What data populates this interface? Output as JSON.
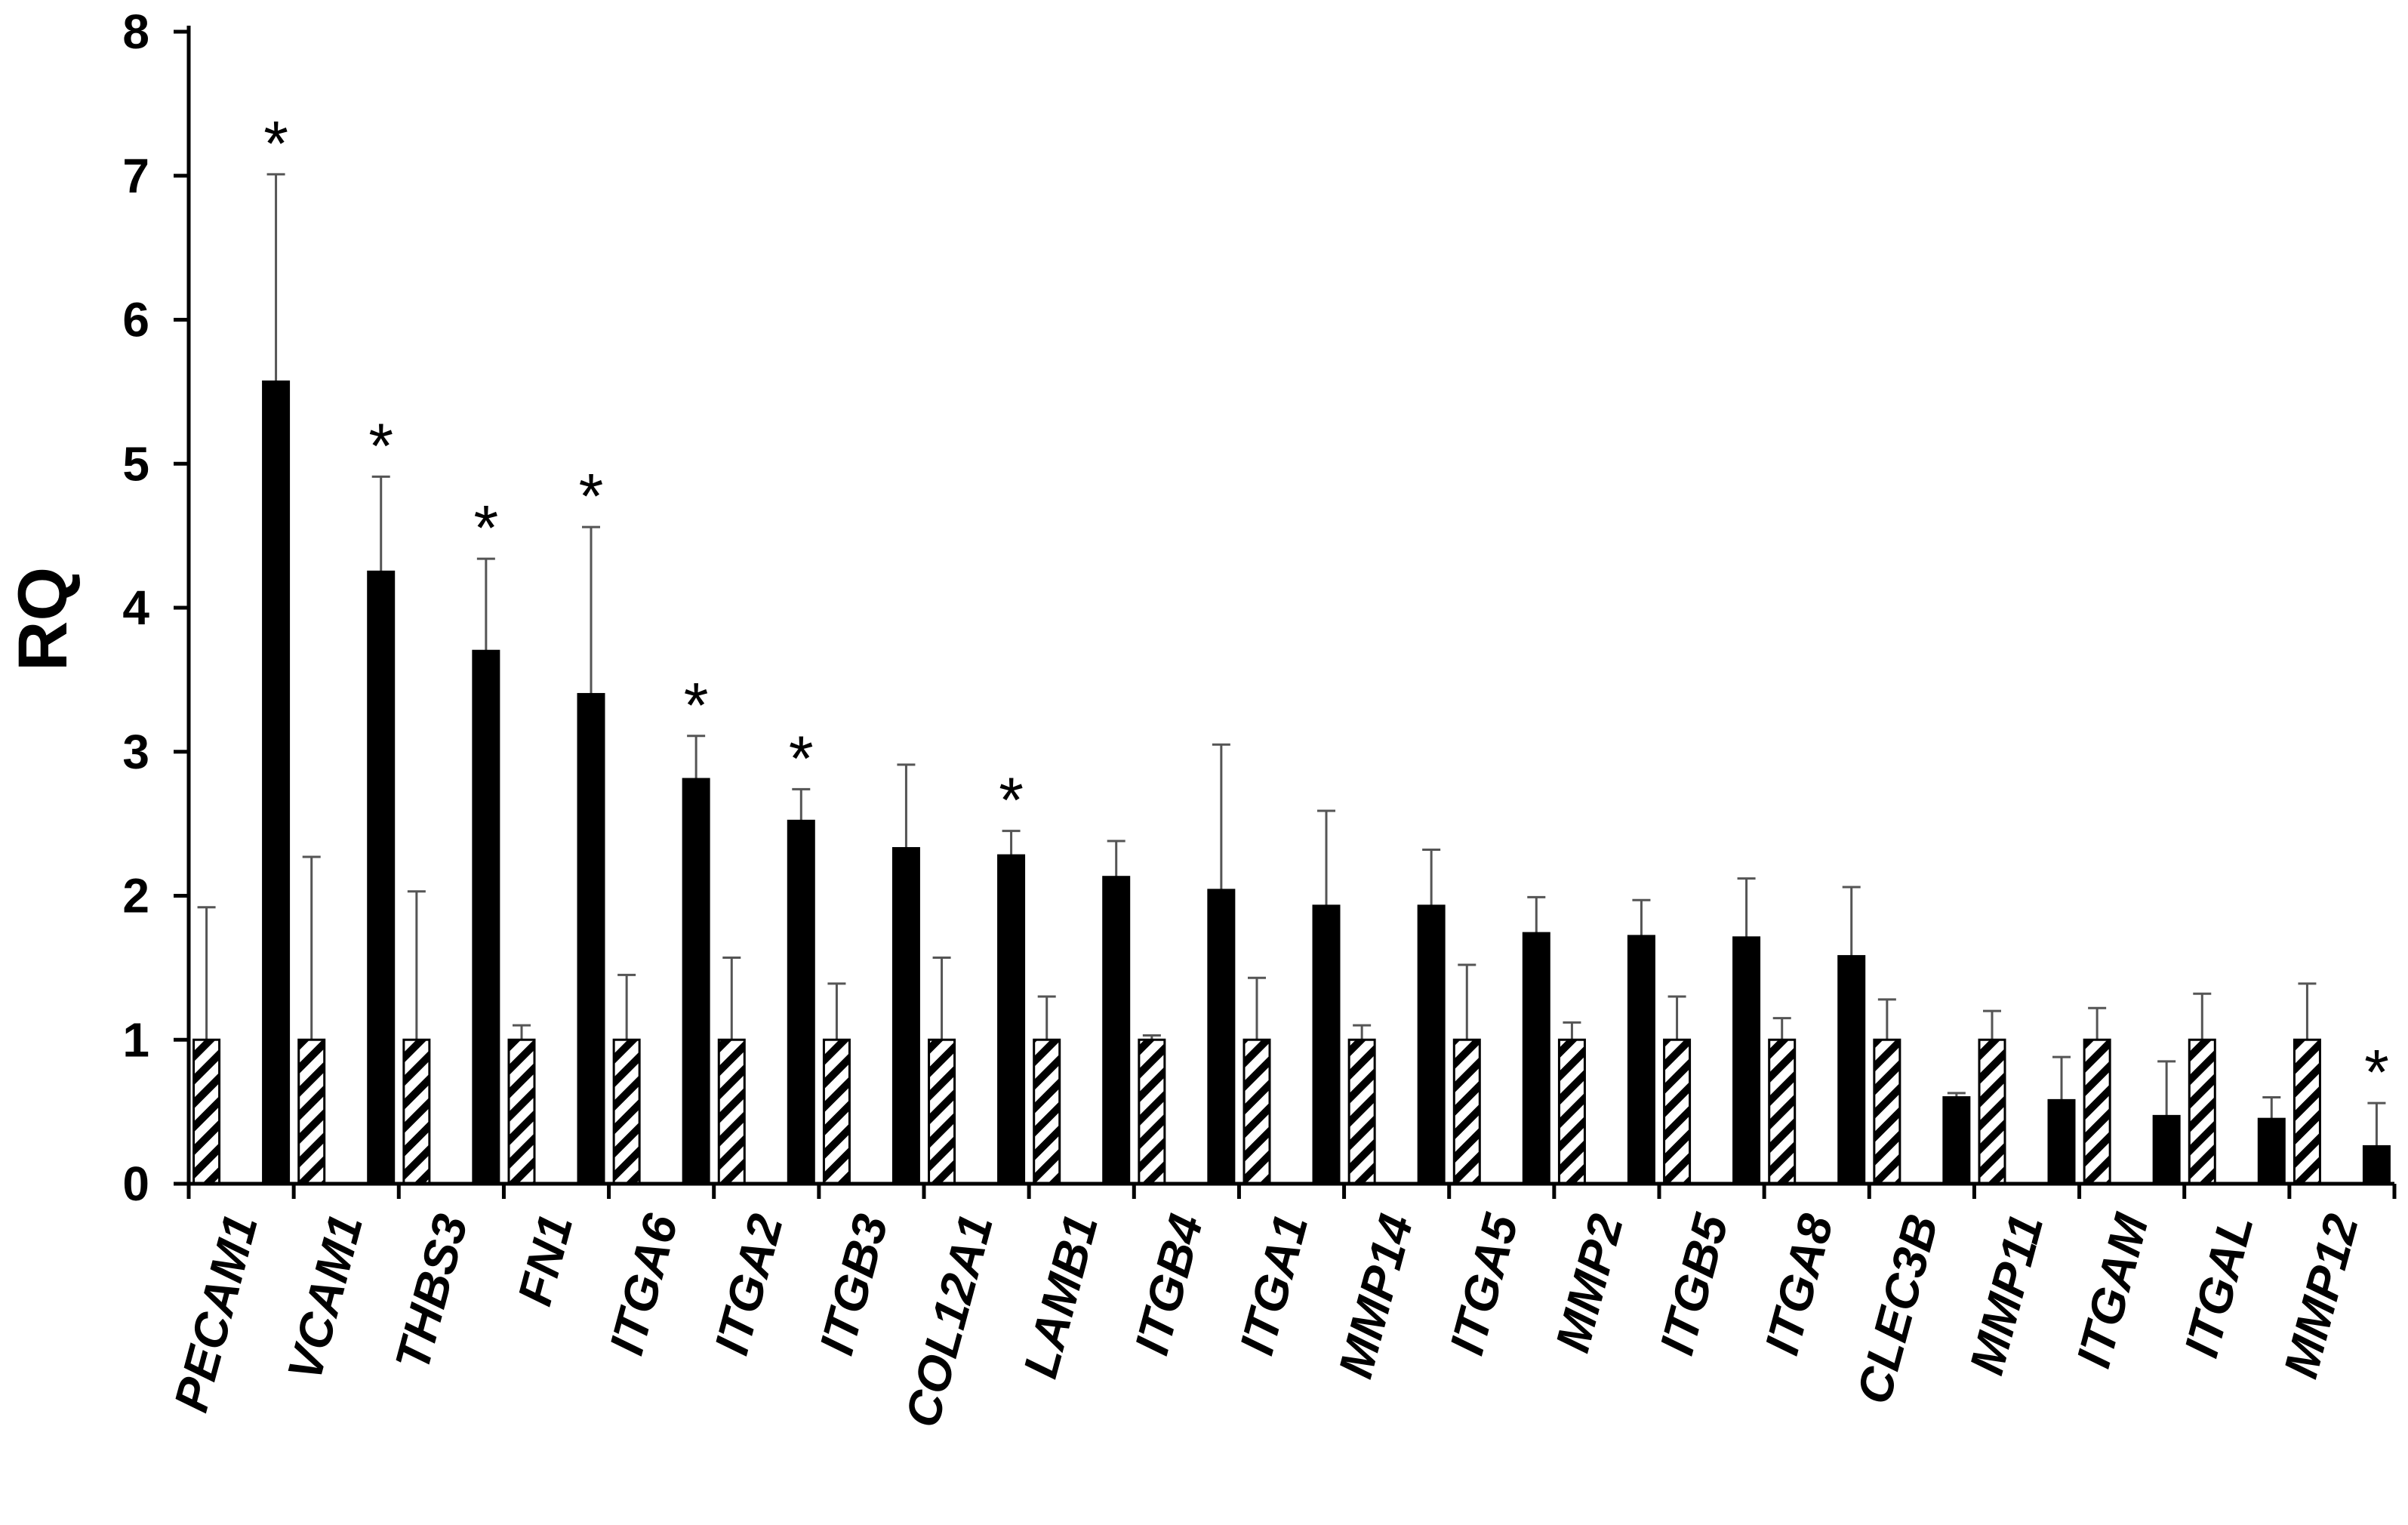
{
  "chart_data": {
    "type": "bar",
    "title": "",
    "xlabel": "",
    "ylabel": "RQ",
    "ylim": [
      0,
      8
    ],
    "yticks": [
      "0",
      "1",
      "2",
      "3",
      "4",
      "5",
      "6",
      "7",
      "8"
    ],
    "grid": false,
    "legend": "none",
    "categories": [
      "PECAM1",
      "VCAM1",
      "THBS3",
      "FN1",
      "ITGA6",
      "ITGA2",
      "ITGB3",
      "COL12A1",
      "LAMB1",
      "ITGB4",
      "ITGA1",
      "MMP14",
      "ITGA5",
      "MMP2",
      "ITGB5",
      "ITGA8",
      "CLEC3B",
      "MMP11",
      "ITGAM",
      "ITGAL",
      "MMP12"
    ],
    "series": [
      {
        "style": "hatched",
        "color": "#ffffff",
        "values": [
          1,
          1,
          1,
          1,
          1,
          1,
          1,
          1,
          1,
          1,
          1,
          1,
          1,
          1,
          1,
          1,
          1,
          1,
          1,
          1,
          1
        ],
        "error": [
          0.92,
          1.27,
          1.03,
          0.1,
          0.45,
          0.57,
          0.39,
          0.57,
          0.3,
          0.03,
          0.43,
          0.1,
          0.52,
          0.12,
          0.3,
          0.15,
          0.28,
          0.2,
          0.22,
          0.32,
          0.39
        ]
      },
      {
        "style": "solid",
        "color": "#000000",
        "values": [
          5.57,
          4.25,
          3.7,
          3.4,
          2.81,
          2.52,
          2.33,
          2.28,
          2.13,
          2.04,
          1.93,
          1.93,
          1.74,
          1.72,
          1.71,
          1.58,
          0.6,
          0.58,
          0.47,
          0.45,
          0.26
        ],
        "error": [
          1.44,
          0.66,
          0.64,
          1.16,
          0.3,
          0.22,
          0.58,
          0.17,
          0.25,
          1.01,
          0.66,
          0.39,
          0.25,
          0.25,
          0.41,
          0.48,
          0.03,
          0.3,
          0.38,
          0.15,
          0.3
        ]
      }
    ],
    "annotations": [
      {
        "category": "PECAM1",
        "text": "*"
      },
      {
        "category": "VCAM1",
        "text": "*"
      },
      {
        "category": "THBS3",
        "text": "*"
      },
      {
        "category": "FN1",
        "text": "*"
      },
      {
        "category": "ITGA6",
        "text": "*"
      },
      {
        "category": "ITGA2",
        "text": "*"
      },
      {
        "category": "COL12A1",
        "text": "*"
      },
      {
        "category": "MMP12",
        "text": "*"
      }
    ]
  }
}
